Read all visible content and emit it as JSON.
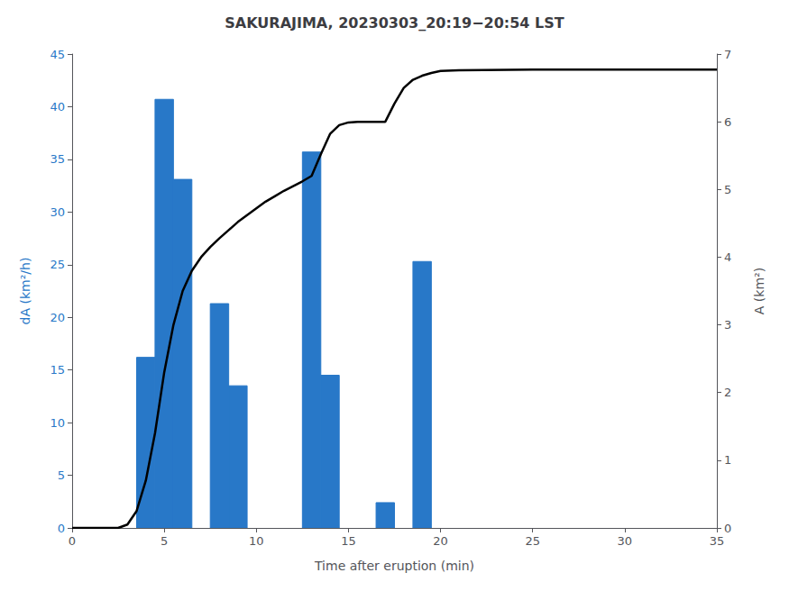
{
  "chart_data": {
    "type": "bar",
    "title": "SAKURAJIMA, 20230303_20:19−20:54 LST",
    "xlabel": "Time after eruption (min)",
    "ylabel": "dA (km²/h)",
    "y2label": "A (km²)",
    "xlim": [
      0,
      35
    ],
    "xticks": [
      0,
      5,
      10,
      15,
      20,
      25,
      30,
      35
    ],
    "ylim": [
      0,
      45
    ],
    "yticks": [
      0,
      5,
      10,
      15,
      20,
      25,
      30,
      35,
      40,
      45
    ],
    "y2lim": [
      0,
      7
    ],
    "y2ticks": [
      0,
      1,
      2,
      3,
      4,
      5,
      6,
      7
    ],
    "grid": false,
    "series": [
      {
        "type": "bar",
        "color": "#2878c8",
        "x": [
          4,
          5,
          6,
          8,
          9,
          13,
          14,
          17,
          19
        ],
        "values": [
          16.2,
          40.7,
          33.1,
          21.3,
          13.5,
          35.7,
          14.5,
          2.4,
          25.3
        ]
      },
      {
        "type": "line",
        "axis": "y2",
        "color": "#000000",
        "x": [
          0,
          2.5,
          3.0,
          3.5,
          4.0,
          4.5,
          5.0,
          5.5,
          6.0,
          6.5,
          7.0,
          7.5,
          8.0,
          8.5,
          9.0,
          9.5,
          10.0,
          10.5,
          11.0,
          11.5,
          12.0,
          12.5,
          13.0,
          13.5,
          14.0,
          14.5,
          15.0,
          15.5,
          16.0,
          16.5,
          17.0,
          17.5,
          18.0,
          18.5,
          19.0,
          19.5,
          20.0,
          21.0,
          25.0,
          35.0
        ],
        "values": [
          0,
          0,
          0.05,
          0.25,
          0.7,
          1.4,
          2.3,
          3.0,
          3.5,
          3.8,
          4.0,
          4.15,
          4.28,
          4.4,
          4.52,
          4.62,
          4.72,
          4.82,
          4.9,
          4.98,
          5.05,
          5.12,
          5.2,
          5.52,
          5.82,
          5.95,
          5.99,
          6.0,
          6.0,
          6.0,
          6.0,
          6.27,
          6.5,
          6.62,
          6.68,
          6.72,
          6.75,
          6.76,
          6.77,
          6.77
        ]
      }
    ]
  }
}
